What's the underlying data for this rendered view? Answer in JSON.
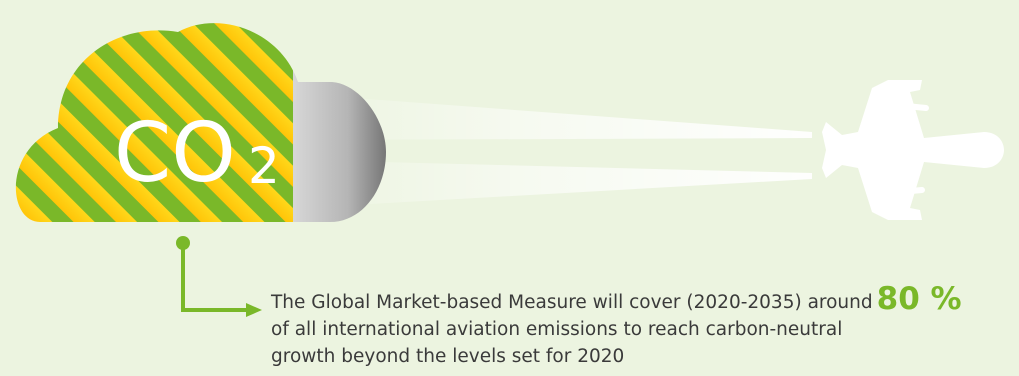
{
  "cloud": {
    "formula": "CO",
    "subscript": "2"
  },
  "caption": {
    "line1": "The Global Market-based Measure will cover (2020-2035) around",
    "percentage": "80 %",
    "line2": "of all international aviation emissions to reach carbon-neutral",
    "line3": "growth beyond the levels set for 2020"
  },
  "colors": {
    "background": "#ECF4E0",
    "green": "#7AB829",
    "yellow": "#FFD400",
    "orange": "#F7A310",
    "text": "#3A3A3A"
  },
  "icons": {
    "cloud": "co2-cloud-icon",
    "plane": "airplane-icon",
    "connector": "arrow-connector-icon"
  }
}
